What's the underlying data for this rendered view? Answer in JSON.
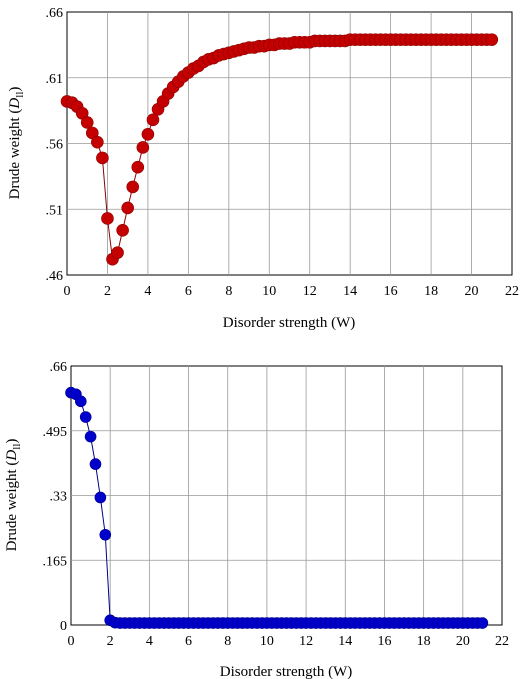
{
  "chart_data": [
    {
      "type": "scatter",
      "xlabel": "Disorder strength (W)",
      "ylabel": "Drude weight (",
      "ylabel_symbol": "D",
      "ylabel_sub": "ll",
      "ylabel_close": ")",
      "xlim": [
        0,
        22
      ],
      "ylim": [
        0.46,
        0.66
      ],
      "grid": true,
      "xticks": [
        "0",
        "2",
        "4",
        "6",
        "8",
        "10",
        "12",
        "14",
        "16",
        "18",
        "20",
        "22"
      ],
      "yticks": [
        ".46",
        ".51",
        ".56",
        ".61",
        ".66"
      ],
      "ytick_values": [
        0.46,
        0.51,
        0.56,
        0.61,
        0.66
      ],
      "colors": {
        "marker": "#c40000",
        "line": "#8b0000"
      },
      "series": [
        {
          "x": [
            0,
            0.25,
            0.5,
            0.75,
            1.0,
            1.25,
            1.5,
            1.75,
            2.0,
            2.25,
            2.5,
            2.75,
            3.0,
            3.25,
            3.5,
            3.75,
            4.0,
            4.25,
            4.5,
            4.75,
            5.0,
            5.25,
            5.5,
            5.75,
            6.0,
            6.25,
            6.5,
            6.75,
            7.0,
            7.25,
            7.5,
            7.75,
            8.0,
            8.25,
            8.5,
            8.75,
            9.0,
            9.25,
            9.5,
            9.75,
            10.0,
            10.25,
            10.5,
            10.75,
            11.0,
            11.25,
            11.5,
            11.75,
            12.0,
            12.25,
            12.5,
            12.75,
            13.0,
            13.25,
            13.5,
            13.75,
            14.0,
            14.25,
            14.5,
            14.75,
            15.0,
            15.25,
            15.5,
            15.75,
            16.0,
            16.25,
            16.5,
            16.75,
            17.0,
            17.25,
            17.5,
            17.75,
            18.0,
            18.25,
            18.5,
            18.75,
            19.0,
            19.25,
            19.5,
            19.75,
            20.0,
            20.25,
            20.5,
            20.75,
            21.0
          ],
          "y": [
            0.592,
            0.591,
            0.588,
            0.583,
            0.576,
            0.568,
            0.561,
            0.549,
            0.503,
            0.472,
            0.477,
            0.494,
            0.511,
            0.527,
            0.542,
            0.557,
            0.567,
            0.578,
            0.586,
            0.592,
            0.598,
            0.603,
            0.607,
            0.611,
            0.614,
            0.617,
            0.619,
            0.622,
            0.624,
            0.625,
            0.627,
            0.628,
            0.629,
            0.63,
            0.631,
            0.632,
            0.633,
            0.633,
            0.634,
            0.634,
            0.635,
            0.635,
            0.636,
            0.636,
            0.636,
            0.637,
            0.637,
            0.637,
            0.637,
            0.638,
            0.638,
            0.638,
            0.638,
            0.638,
            0.638,
            0.638,
            0.639,
            0.639,
            0.639,
            0.639,
            0.639,
            0.639,
            0.639,
            0.639,
            0.639,
            0.639,
            0.639,
            0.639,
            0.639,
            0.639,
            0.639,
            0.639,
            0.639,
            0.639,
            0.639,
            0.639,
            0.639,
            0.639,
            0.639,
            0.639,
            0.639,
            0.639,
            0.639,
            0.639,
            0.639
          ]
        }
      ]
    },
    {
      "type": "scatter",
      "xlabel": "Disorder strength (W)",
      "ylabel": "Drude weight (",
      "ylabel_symbol": "D",
      "ylabel_sub": "ll",
      "ylabel_close": ")",
      "xlim": [
        0,
        22
      ],
      "ylim": [
        0,
        0.66
      ],
      "grid": true,
      "xticks": [
        "0",
        "2",
        "4",
        "6",
        "8",
        "10",
        "12",
        "14",
        "16",
        "18",
        "20",
        "22"
      ],
      "yticks": [
        "0",
        ".165",
        ".33",
        ".495",
        ".66"
      ],
      "ytick_values": [
        0,
        0.165,
        0.33,
        0.495,
        0.66
      ],
      "colors": {
        "marker": "#0000cc",
        "line": "#00008b"
      },
      "series": [
        {
          "x": [
            0,
            0.25,
            0.5,
            0.75,
            1.0,
            1.25,
            1.5,
            1.75,
            2.0,
            2.25,
            2.5,
            2.75,
            3.0,
            3.25,
            3.5,
            3.75,
            4.0,
            4.25,
            4.5,
            4.75,
            5.0,
            5.25,
            5.5,
            5.75,
            6.0,
            6.25,
            6.5,
            6.75,
            7.0,
            7.25,
            7.5,
            7.75,
            8.0,
            8.25,
            8.5,
            8.75,
            9.0,
            9.25,
            9.5,
            9.75,
            10.0,
            10.25,
            10.5,
            10.75,
            11.0,
            11.25,
            11.5,
            11.75,
            12.0,
            12.25,
            12.5,
            12.75,
            13.0,
            13.25,
            13.5,
            13.75,
            14.0,
            14.25,
            14.5,
            14.75,
            15.0,
            15.25,
            15.5,
            15.75,
            16.0,
            16.25,
            16.5,
            16.75,
            17.0,
            17.25,
            17.5,
            17.75,
            18.0,
            18.25,
            18.5,
            18.75,
            19.0,
            19.25,
            19.5,
            19.75,
            20.0,
            20.25,
            20.5,
            20.75,
            21.0
          ],
          "y": [
            0.592,
            0.588,
            0.57,
            0.53,
            0.48,
            0.41,
            0.325,
            0.23,
            0.012,
            0.006,
            0.005,
            0.005,
            0.005,
            0.005,
            0.005,
            0.005,
            0.005,
            0.005,
            0.005,
            0.005,
            0.005,
            0.005,
            0.005,
            0.005,
            0.005,
            0.005,
            0.005,
            0.005,
            0.005,
            0.005,
            0.005,
            0.005,
            0.005,
            0.005,
            0.005,
            0.005,
            0.005,
            0.005,
            0.005,
            0.005,
            0.005,
            0.005,
            0.005,
            0.005,
            0.005,
            0.005,
            0.005,
            0.005,
            0.005,
            0.005,
            0.005,
            0.005,
            0.005,
            0.005,
            0.005,
            0.005,
            0.005,
            0.005,
            0.005,
            0.005,
            0.005,
            0.005,
            0.005,
            0.005,
            0.005,
            0.005,
            0.005,
            0.005,
            0.005,
            0.005,
            0.005,
            0.005,
            0.005,
            0.005,
            0.005,
            0.005,
            0.005,
            0.005,
            0.005,
            0.005,
            0.005,
            0.005,
            0.005,
            0.005,
            0.005
          ]
        }
      ]
    }
  ]
}
